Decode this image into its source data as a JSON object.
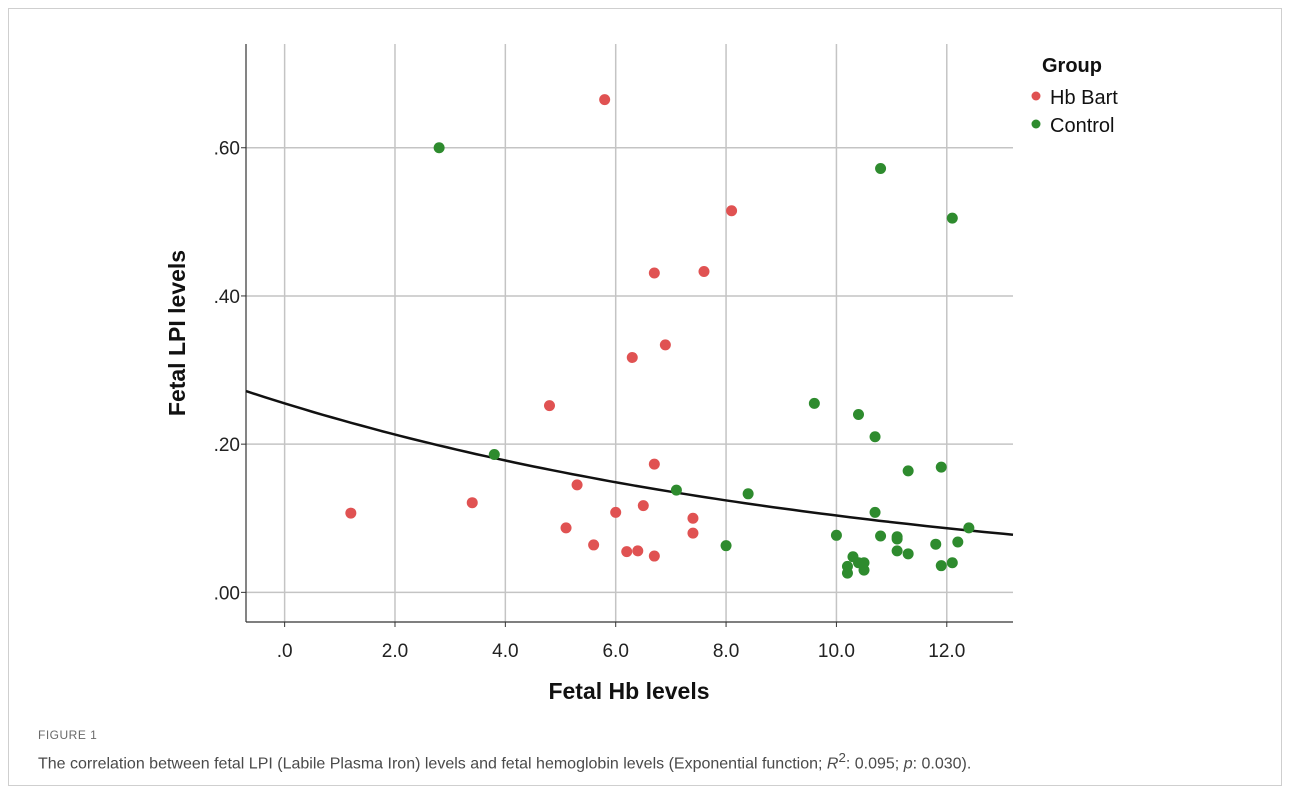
{
  "chart_data": {
    "type": "scatter",
    "xlabel": "Fetal Hb levels",
    "ylabel": "Fetal LPI levels",
    "xlim": [
      -0.7,
      13.2
    ],
    "ylim": [
      -0.04,
      0.74
    ],
    "x_ticks": [
      {
        "v": 0,
        "label": ".0"
      },
      {
        "v": 2,
        "label": "2.0"
      },
      {
        "v": 4,
        "label": "4.0"
      },
      {
        "v": 6,
        "label": "6.0"
      },
      {
        "v": 8,
        "label": "8.0"
      },
      {
        "v": 10,
        "label": "10.0"
      },
      {
        "v": 12,
        "label": "12.0"
      }
    ],
    "y_ticks": [
      {
        "v": 0,
        "label": ".00"
      },
      {
        "v": 0.2,
        "label": ".20"
      },
      {
        "v": 0.4,
        "label": ".40"
      },
      {
        "v": 0.6,
        "label": ".60"
      }
    ],
    "grid": true,
    "legend": {
      "title": "Group",
      "position": "top-right"
    },
    "series": [
      {
        "name": "Hb Bart",
        "color": "#e05252",
        "points": [
          [
            1.2,
            0.107
          ],
          [
            3.4,
            0.121
          ],
          [
            4.8,
            0.252
          ],
          [
            5.1,
            0.087
          ],
          [
            5.3,
            0.145
          ],
          [
            5.6,
            0.064
          ],
          [
            5.8,
            0.665
          ],
          [
            6.0,
            0.108
          ],
          [
            6.2,
            0.055
          ],
          [
            6.3,
            0.317
          ],
          [
            6.4,
            0.056
          ],
          [
            6.5,
            0.117
          ],
          [
            6.7,
            0.431
          ],
          [
            6.7,
            0.173
          ],
          [
            6.7,
            0.049
          ],
          [
            6.9,
            0.334
          ],
          [
            7.4,
            0.1
          ],
          [
            7.4,
            0.08
          ],
          [
            7.6,
            0.433
          ],
          [
            8.1,
            0.515
          ]
        ]
      },
      {
        "name": "Control",
        "color": "#2e8b2e",
        "points": [
          [
            2.8,
            0.6
          ],
          [
            3.8,
            0.186
          ],
          [
            7.1,
            0.138
          ],
          [
            8.0,
            0.063
          ],
          [
            8.4,
            0.133
          ],
          [
            9.6,
            0.255
          ],
          [
            10.0,
            0.077
          ],
          [
            10.2,
            0.035
          ],
          [
            10.2,
            0.026
          ],
          [
            10.3,
            0.048
          ],
          [
            10.4,
            0.24
          ],
          [
            10.4,
            0.04
          ],
          [
            10.5,
            0.04
          ],
          [
            10.5,
            0.03
          ],
          [
            10.7,
            0.21
          ],
          [
            10.7,
            0.108
          ],
          [
            10.8,
            0.572
          ],
          [
            10.8,
            0.076
          ],
          [
            11.1,
            0.075
          ],
          [
            11.1,
            0.072
          ],
          [
            11.1,
            0.056
          ],
          [
            11.3,
            0.164
          ],
          [
            11.3,
            0.052
          ],
          [
            11.8,
            0.065
          ],
          [
            11.9,
            0.169
          ],
          [
            11.9,
            0.036
          ],
          [
            12.1,
            0.505
          ],
          [
            12.1,
            0.04
          ],
          [
            12.2,
            0.068
          ],
          [
            12.4,
            0.087
          ]
        ]
      }
    ],
    "fit": {
      "type": "exponential",
      "a": 0.255,
      "b": -0.09
    }
  },
  "figure_label": "FIGURE 1",
  "caption": {
    "before": "The correlation between fetal LPI (Labile Plasma Iron) levels and fetal hemoglobin levels (Exponential function; ",
    "r_symbol": "R",
    "r_sup": "2",
    "middle": ": 0.095; ",
    "p_symbol": "p",
    "after": ": 0.030)."
  }
}
